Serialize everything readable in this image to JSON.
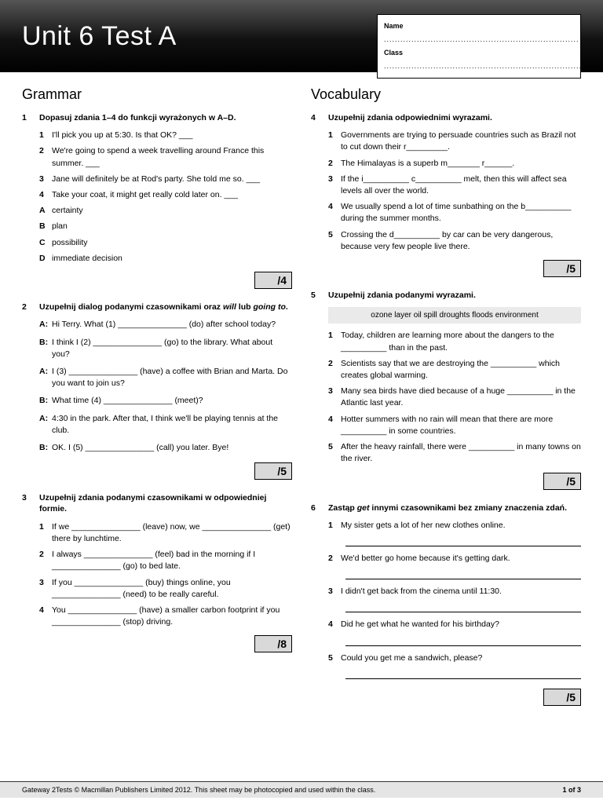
{
  "header": {
    "title": "Unit 6 Test A",
    "name_label": "Name",
    "class_label": "Class"
  },
  "left": {
    "section": "Grammar",
    "q1": {
      "num": "1",
      "title": "Dopasuj zdania 1–4 do funkcji wyrażonych w A–D.",
      "items": [
        {
          "n": "1",
          "t": "I'll pick you up at 5:30. Is that OK? ___"
        },
        {
          "n": "2",
          "t": "We're going to spend a week travelling around France this summer. ___"
        },
        {
          "n": "3",
          "t": "Jane will definitely be at Rod's party. She told me so. ___"
        },
        {
          "n": "4",
          "t": "Take your coat, it might get really cold later on. ___"
        }
      ],
      "opts": [
        {
          "n": "A",
          "t": "certainty"
        },
        {
          "n": "B",
          "t": "plan"
        },
        {
          "n": "C",
          "t": "possibility"
        },
        {
          "n": "D",
          "t": "immediate decision"
        }
      ],
      "score": "/4"
    },
    "q2": {
      "num": "2",
      "title_pre": "Uzupełnij dialog podanymi czasownikami oraz ",
      "title_i1": "will",
      "title_mid": " lub ",
      "title_i2": "going to",
      "title_end": ".",
      "lines": [
        {
          "w": "A:",
          "t": "Hi Terry. What (1) _______________ (do) after school today?"
        },
        {
          "w": "B:",
          "t": "I think I (2) _______________ (go) to the library. What about you?"
        },
        {
          "w": "A:",
          "t": "I (3) _______________ (have) a coffee with Brian and Marta. Do you want to join us?"
        },
        {
          "w": "B:",
          "t": "What time (4) _______________ (meet)?"
        },
        {
          "w": "A:",
          "t": "4:30 in the park. After that, I think we'll be playing tennis at the club."
        },
        {
          "w": "B:",
          "t": "OK. I (5) _______________ (call) you later. Bye!"
        }
      ],
      "score": "/5"
    },
    "q3": {
      "num": "3",
      "title": "Uzupełnij zdania podanymi czasownikami w odpowiedniej formie.",
      "items": [
        {
          "n": "1",
          "t": "If we _______________ (leave) now, we _______________ (get) there by lunchtime."
        },
        {
          "n": "2",
          "t": "I always _______________ (feel) bad in the morning if I _______________ (go) to bed late."
        },
        {
          "n": "3",
          "t": "If you _______________ (buy) things online, you _______________ (need) to be really careful."
        },
        {
          "n": "4",
          "t": "You _______________ (have) a smaller carbon footprint if you _______________ (stop) driving."
        }
      ],
      "score": "/8"
    }
  },
  "right": {
    "section": "Vocabulary",
    "q4": {
      "num": "4",
      "title": "Uzupełnij zdania odpowiednimi wyrazami.",
      "items": [
        {
          "n": "1",
          "t": "Governments are trying to persuade countries such as Brazil not to cut down their r_________."
        },
        {
          "n": "2",
          "t": "The Himalayas is a superb m_______ r______."
        },
        {
          "n": "3",
          "t": "If the i__________ c__________ melt, then this will affect sea levels all over the world."
        },
        {
          "n": "4",
          "t": "We usually spend a lot of time sunbathing on the b__________ during the summer months."
        },
        {
          "n": "5",
          "t": "Crossing the d__________ by car can be very dangerous, because very few people live there."
        }
      ],
      "score": "/5"
    },
    "q5": {
      "num": "5",
      "title": "Uzupełnij zdania podanymi wyrazami.",
      "bank": "ozone layer  oil spill  droughts  floods  environment",
      "items": [
        {
          "n": "1",
          "t": "Today, children are learning more about the dangers to the __________ than in the past."
        },
        {
          "n": "2",
          "t": "Scientists say that we are destroying the __________ which creates global warming."
        },
        {
          "n": "3",
          "t": "Many sea birds have died because of a huge __________ in the Atlantic last year."
        },
        {
          "n": "4",
          "t": "Hotter summers with no rain will mean that there are more __________ in some countries."
        },
        {
          "n": "5",
          "t": "After the heavy rainfall, there were __________ in many towns on the river."
        }
      ],
      "score": "/5"
    },
    "q6": {
      "num": "6",
      "title_pre": "Zastąp ",
      "title_i": "get",
      "title_post": " innymi czasownikami bez zmiany znaczenia zdań.",
      "items": [
        {
          "n": "1",
          "t": "My sister gets a lot of her new clothes online."
        },
        {
          "n": "2",
          "t": "We'd better go home because it's getting dark."
        },
        {
          "n": "3",
          "t": "I didn't get back from the cinema until 11:30."
        },
        {
          "n": "4",
          "t": "Did he get what he wanted for his birthday?"
        },
        {
          "n": "5",
          "t": "Could you get me a sandwich, please?"
        }
      ],
      "score": "/5"
    }
  },
  "footer": {
    "left": "Gateway 2Tests © Macmillan Publishers Limited 2012. This sheet may be photocopied and used within the class.",
    "right": "1 of 3"
  }
}
